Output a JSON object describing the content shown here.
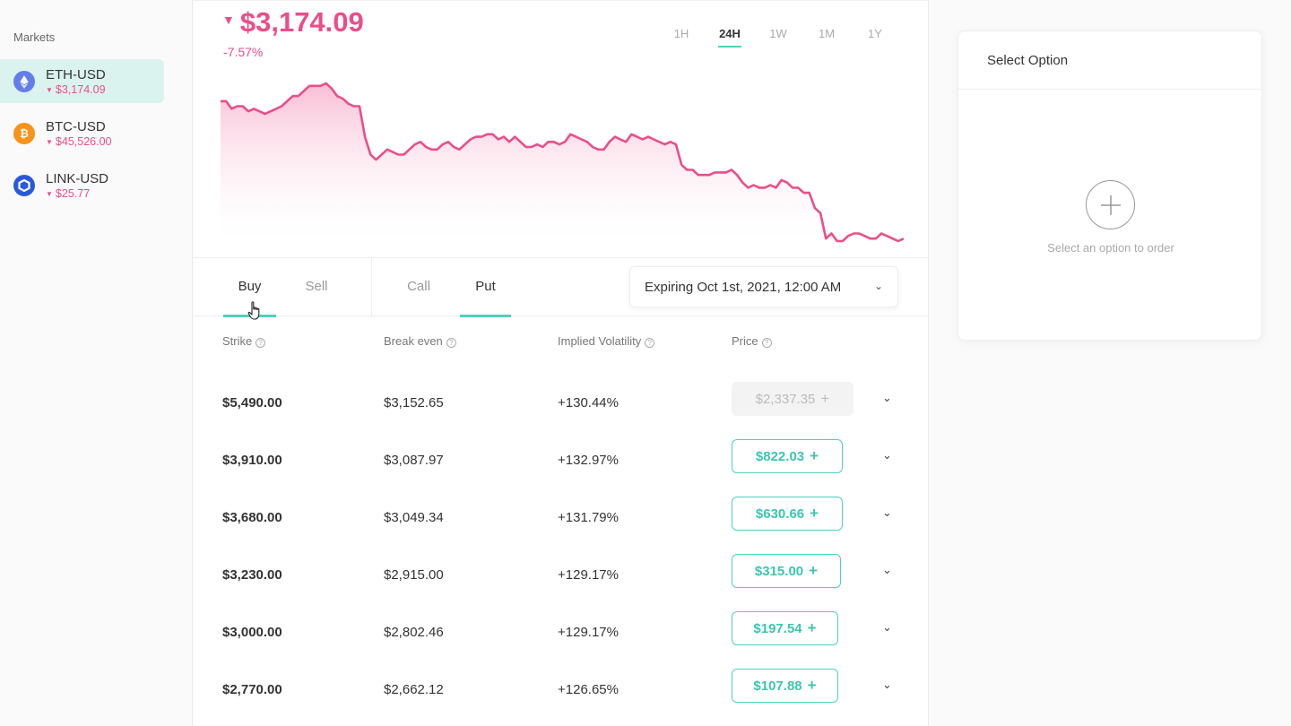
{
  "sidebar": {
    "title": "Markets",
    "markets": [
      {
        "pair": "ETH-USD",
        "price": "$3,174.09",
        "trend": "down",
        "icon": "ethereum-icon",
        "color": "#627eea"
      },
      {
        "pair": "BTC-USD",
        "price": "$45,526.00",
        "trend": "down",
        "icon": "bitcoin-icon",
        "color": "#f7931a"
      },
      {
        "pair": "LINK-USD",
        "price": "$25.77",
        "trend": "down",
        "icon": "chainlink-icon",
        "color": "#2a5ada"
      }
    ]
  },
  "header": {
    "price": "$3,174.09",
    "change": "-7.57%",
    "ranges": [
      "1H",
      "24H",
      "1W",
      "1M",
      "1Y"
    ],
    "active_range": "24H"
  },
  "chart_data": {
    "type": "area",
    "color": "#ea4e8b",
    "values": [
      74,
      74,
      71,
      72,
      72,
      70,
      71,
      70,
      69,
      70,
      71,
      72,
      74,
      76,
      76,
      78,
      80,
      80,
      80,
      81,
      79,
      76,
      75,
      73,
      72,
      72,
      60,
      53,
      51,
      53,
      55,
      54,
      53,
      53,
      55,
      57,
      58,
      56,
      55,
      55,
      57,
      58,
      56,
      55,
      57,
      59,
      60,
      60,
      61,
      61,
      59,
      60,
      58,
      60,
      58,
      56,
      56,
      57,
      56,
      58,
      58,
      57,
      58,
      61,
      60,
      59,
      58,
      56,
      55,
      55,
      58,
      60,
      59,
      58,
      61,
      60,
      59,
      60,
      59,
      58,
      57,
      58,
      57,
      49,
      47,
      47,
      45,
      45,
      45,
      46,
      46,
      46,
      47,
      45,
      42,
      40,
      41,
      40,
      40,
      41,
      40,
      43,
      42,
      40,
      40,
      38,
      38,
      32,
      30,
      20,
      22,
      19,
      19,
      21,
      22,
      22,
      21,
      20,
      20,
      22,
      21,
      20,
      19,
      20
    ]
  },
  "tabs": {
    "side": [
      "Buy",
      "Sell"
    ],
    "active_side": "Buy",
    "type": [
      "Call",
      "Put"
    ],
    "active_type": "Put",
    "expiry": "Expiring Oct 1st, 2021, 12:00 AM"
  },
  "table": {
    "headers": [
      "Strike",
      "Break even",
      "Implied Volatility",
      "Price"
    ],
    "rows": [
      {
        "strike": "$5,490.00",
        "break_even": "$3,152.65",
        "iv": "+130.44%",
        "price": "$2,337.35",
        "disabled": true
      },
      {
        "strike": "$3,910.00",
        "break_even": "$3,087.97",
        "iv": "+132.97%",
        "price": "$822.03",
        "disabled": false
      },
      {
        "strike": "$3,680.00",
        "break_even": "$3,049.34",
        "iv": "+131.79%",
        "price": "$630.66",
        "disabled": false
      },
      {
        "strike": "$3,230.00",
        "break_even": "$2,915.00",
        "iv": "+129.17%",
        "price": "$315.00",
        "disabled": false
      },
      {
        "strike": "$3,000.00",
        "break_even": "$2,802.46",
        "iv": "+129.17%",
        "price": "$197.54",
        "disabled": false
      },
      {
        "strike": "$2,770.00",
        "break_even": "$2,662.12",
        "iv": "+126.65%",
        "price": "$107.88",
        "disabled": false
      }
    ]
  },
  "order": {
    "title": "Select Option",
    "hint": "Select an option to order"
  }
}
